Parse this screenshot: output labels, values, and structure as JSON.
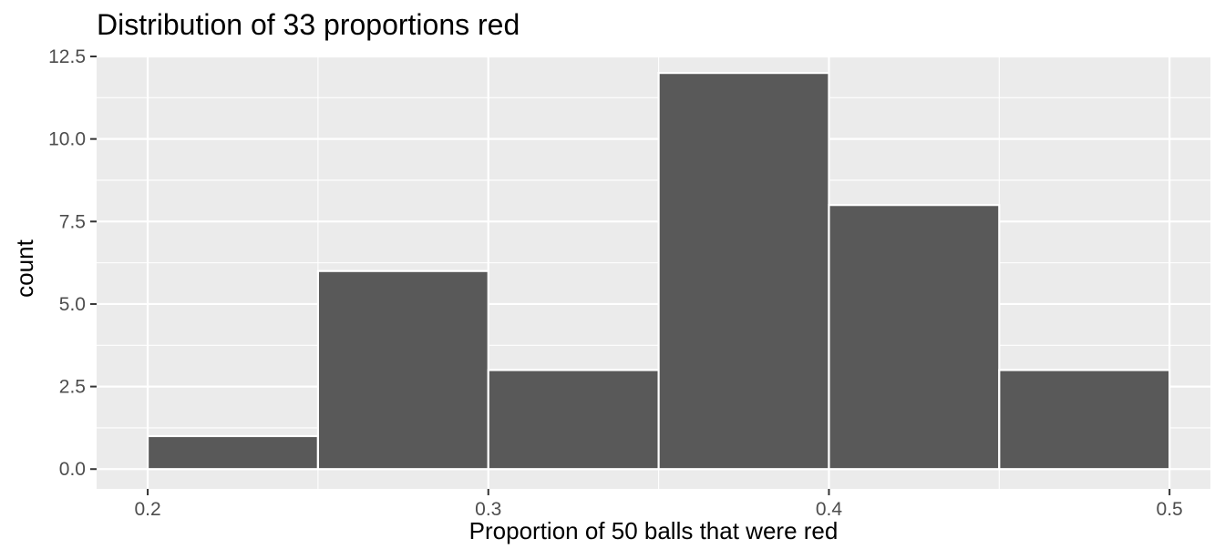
{
  "chart_data": {
    "type": "bar",
    "title": "Distribution of 33 proportions red",
    "xlabel": "Proportion of 50 balls that were red",
    "ylabel": "count",
    "bins": [
      {
        "x_start": 0.2,
        "x_end": 0.25,
        "count": 1
      },
      {
        "x_start": 0.25,
        "x_end": 0.3,
        "count": 6
      },
      {
        "x_start": 0.3,
        "x_end": 0.35,
        "count": 3
      },
      {
        "x_start": 0.35,
        "x_end": 0.4,
        "count": 12
      },
      {
        "x_start": 0.4,
        "x_end": 0.45,
        "count": 8
      },
      {
        "x_start": 0.45,
        "x_end": 0.5,
        "count": 3
      }
    ],
    "x_ticks": [
      "0.2",
      "0.3",
      "0.4",
      "0.5"
    ],
    "y_ticks": [
      "0.0",
      "2.5",
      "5.0",
      "7.5",
      "10.0",
      "12.5"
    ],
    "xlim": [
      0.185,
      0.512
    ],
    "ylim": [
      -0.6,
      12.5
    ],
    "grid": true,
    "colors": {
      "panel_background": "#ebebeb",
      "grid_major": "#ffffff",
      "bar_fill": "#595959",
      "bar_outline": "#ffffff"
    }
  }
}
